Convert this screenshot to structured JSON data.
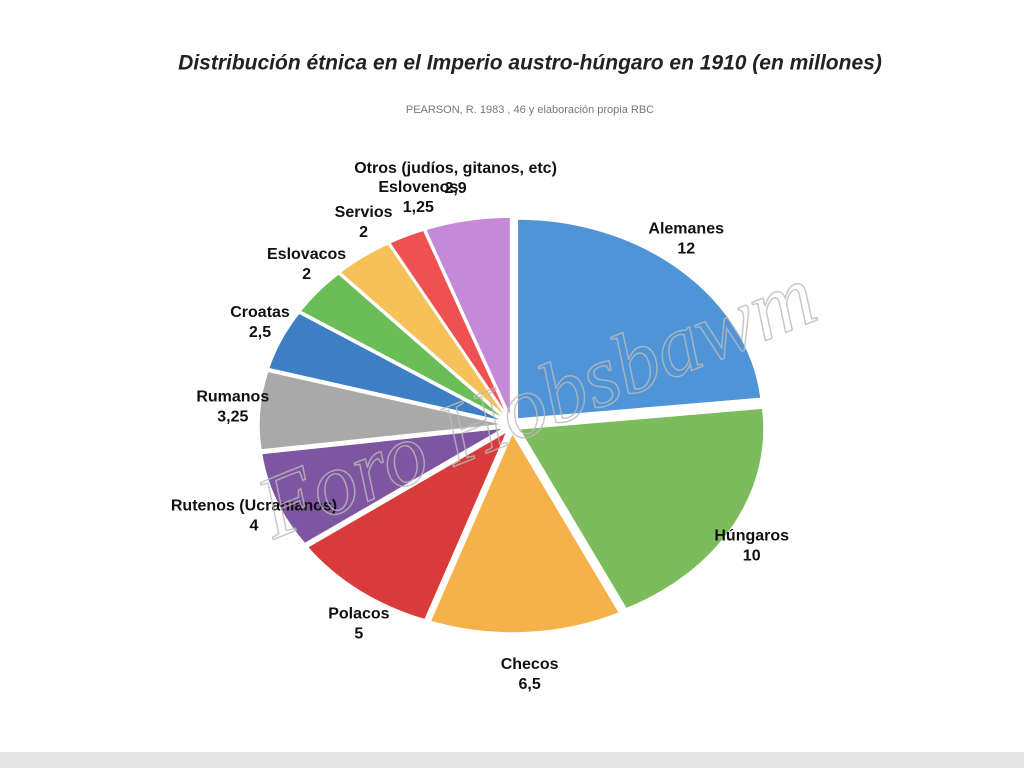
{
  "chart_data": {
    "type": "pie",
    "title": "Distribución étnica en el Imperio austro-húngaro en 1910 (en millones)",
    "subtitle": "PEARSON, R. 1983 , 46 y elaboración propia RBC",
    "watermark": "Foro Hobsbawm",
    "categories": [
      "Alemanes",
      "Húngaros",
      "Checos",
      "Polacos",
      "Rutenos (Ucranianos)",
      "Rumanos",
      "Croatas",
      "Eslovacos",
      "Servios",
      "Eslovenos",
      "Otros (judíos, gitanos, etc)"
    ],
    "values": [
      12,
      10,
      6.5,
      5,
      4,
      3.25,
      2.5,
      2,
      2,
      1.25,
      2.9
    ],
    "value_labels": [
      "12",
      "10",
      "6,5",
      "5",
      "4",
      "3,25",
      "2,5",
      "2",
      "2",
      "1,25",
      "2,9"
    ],
    "colors": [
      "#4f94d6",
      "#7cbc5c",
      "#f5b24a",
      "#d93a3a",
      "#7e55a0",
      "#a9a9a9",
      "#3e7ec4",
      "#6bbd58",
      "#f7c15a",
      "#ef5050",
      "#c48ad8"
    ]
  }
}
